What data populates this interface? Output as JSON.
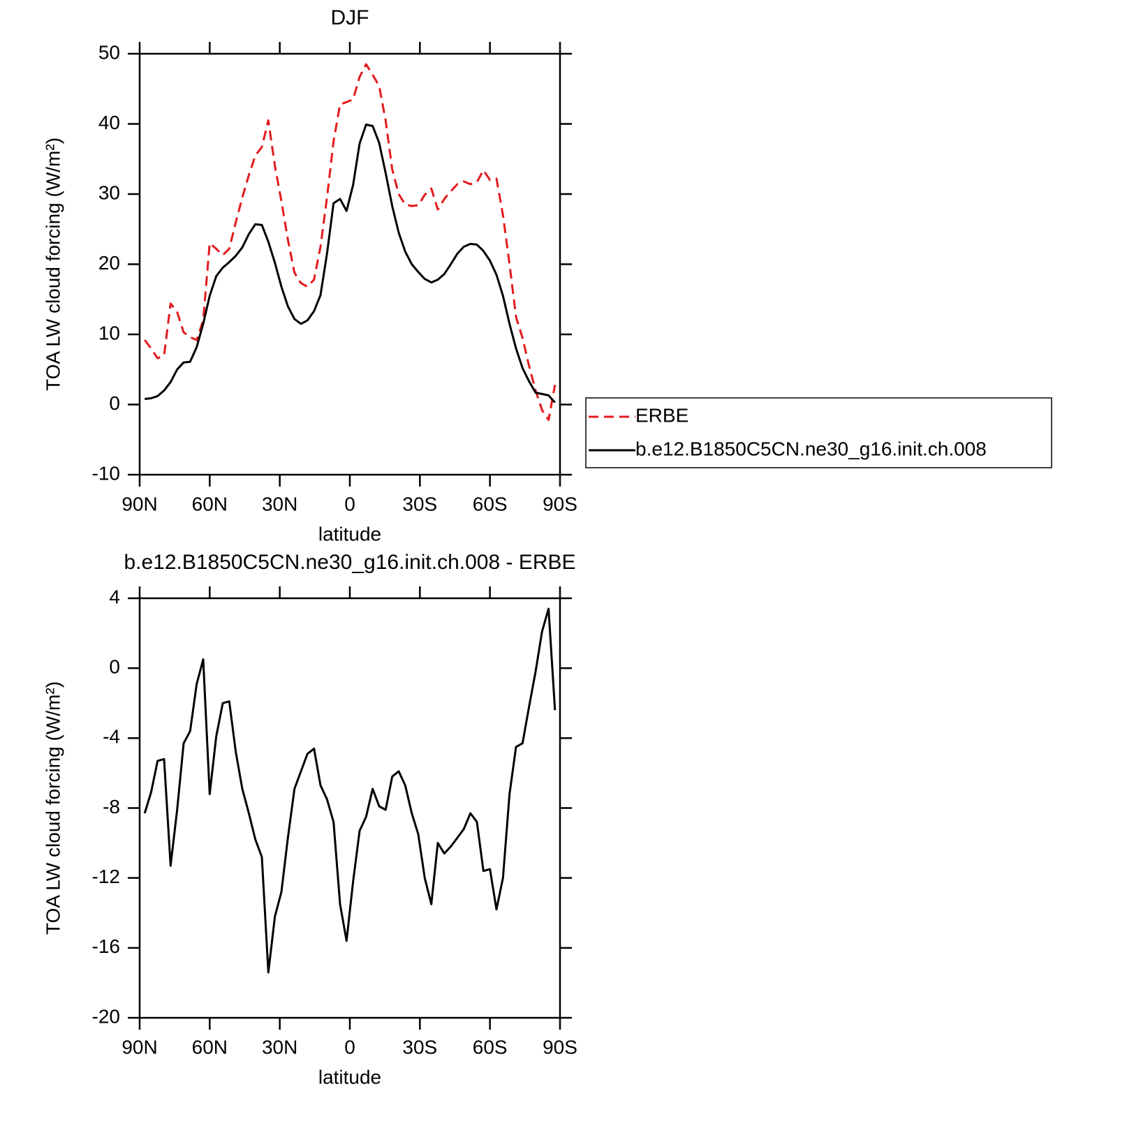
{
  "chart_data": [
    {
      "type": "line",
      "title": "DJF",
      "xlabel": "latitude",
      "ylabel": "TOA LW cloud forcing (W/m²)",
      "x": [
        87.86,
        85.1,
        82.31,
        79.53,
        76.74,
        73.95,
        71.16,
        68.37,
        65.58,
        62.79,
        60.0,
        57.21,
        54.42,
        51.63,
        48.84,
        46.04,
        43.25,
        40.46,
        37.67,
        34.88,
        32.09,
        29.3,
        26.51,
        23.72,
        20.93,
        18.14,
        15.35,
        12.56,
        9.77,
        6.98,
        4.19,
        1.4,
        -1.4,
        -4.19,
        -6.98,
        -9.77,
        -12.56,
        -15.35,
        -18.14,
        -20.93,
        -23.72,
        -26.51,
        -29.3,
        -32.09,
        -34.88,
        -37.67,
        -40.46,
        -43.25,
        -46.04,
        -48.84,
        -51.63,
        -54.42,
        -57.21,
        -60.0,
        -62.79,
        -65.58,
        -68.37,
        -71.16,
        -73.95,
        -76.74,
        -79.53,
        -82.31,
        -85.1,
        -87.86
      ],
      "xlim": [
        90,
        -90
      ],
      "xticks": [
        {
          "value": 90,
          "label": "90N"
        },
        {
          "value": 60,
          "label": "60N"
        },
        {
          "value": 30,
          "label": "30N"
        },
        0,
        {
          "value": -30,
          "label": "30S"
        },
        {
          "value": -60,
          "label": "60S"
        },
        {
          "value": -90,
          "label": "90S"
        }
      ],
      "ylim": [
        -10,
        50
      ],
      "yticks": [
        -10,
        0,
        10,
        20,
        30,
        40,
        50
      ],
      "legend": "right",
      "series": [
        {
          "name": "ERBE",
          "color": "#e31a1c",
          "linestyle": "dashed",
          "values": [
            9.2,
            8,
            6.6,
            7,
            14.4,
            13.2,
            10.3,
            9.6,
            9.2,
            12,
            23,
            22.2,
            21.3,
            22.2,
            26,
            29.5,
            32.7,
            35.5,
            36.7,
            40.5,
            34,
            29,
            23.5,
            18.8,
            17.3,
            16.8,
            17.8,
            22.5,
            29.5,
            37.5,
            42.8,
            43.1,
            43.5,
            46.7,
            48.5,
            47,
            45.4,
            40.5,
            33.5,
            30,
            28.5,
            28.3,
            28.4,
            29.9,
            30.8,
            27.8,
            29.3,
            30.4,
            31.4,
            31.8,
            31.4,
            31.7,
            33.4,
            32,
            32.2,
            27,
            20,
            12.5,
            9.5,
            5.5,
            2,
            -0.8,
            -2.2,
            2.8
          ]
        },
        {
          "name": "b.e12.B1850C5CN.ne30_g16.init.ch.008",
          "color": "#000000",
          "linestyle": "solid",
          "values": [
            0.8,
            0.9,
            1.2,
            2,
            3.2,
            5,
            6,
            6.1,
            8.2,
            11.5,
            15.5,
            18.3,
            19.5,
            20.3,
            21.2,
            22.4,
            24.3,
            25.7,
            25.6,
            23.2,
            20.2,
            16.8,
            14,
            12.2,
            11.5,
            12,
            13.3,
            15.6,
            21.5,
            28.7,
            29.3,
            27.6,
            31.3,
            37.2,
            39.9,
            39.7,
            37.3,
            33,
            28.3,
            24.5,
            21.8,
            20,
            18.9,
            17.9,
            17.4,
            17.8,
            18.6,
            20,
            21.5,
            22.5,
            22.9,
            22.8,
            21.9,
            20.5,
            18.5,
            15.5,
            11.5,
            8,
            5.2,
            3.3,
            1.7,
            1.5,
            1.3,
            0.3
          ]
        }
      ]
    },
    {
      "type": "line",
      "title": "b.e12.B1850C5CN.ne30_g16.init.ch.008 - ERBE",
      "xlabel": "latitude",
      "ylabel": "TOA LW cloud forcing (W/m²)",
      "x": [
        87.86,
        85.1,
        82.31,
        79.53,
        76.74,
        73.95,
        71.16,
        68.37,
        65.58,
        62.79,
        60.0,
        57.21,
        54.42,
        51.63,
        48.84,
        46.04,
        43.25,
        40.46,
        37.67,
        34.88,
        32.09,
        29.3,
        26.51,
        23.72,
        20.93,
        18.14,
        15.35,
        12.56,
        9.77,
        6.98,
        4.19,
        1.4,
        -1.4,
        -4.19,
        -6.98,
        -9.77,
        -12.56,
        -15.35,
        -18.14,
        -20.93,
        -23.72,
        -26.51,
        -29.3,
        -32.09,
        -34.88,
        -37.67,
        -40.46,
        -43.25,
        -46.04,
        -48.84,
        -51.63,
        -54.42,
        -57.21,
        -60.0,
        -62.79,
        -65.58,
        -68.37,
        -71.16,
        -73.95,
        -76.74,
        -79.53,
        -82.31,
        -85.1,
        -87.86
      ],
      "xlim": [
        90,
        -90
      ],
      "xticks": [
        {
          "value": 90,
          "label": "90N"
        },
        {
          "value": 60,
          "label": "60N"
        },
        {
          "value": 30,
          "label": "30N"
        },
        0,
        {
          "value": -30,
          "label": "30S"
        },
        {
          "value": -60,
          "label": "60S"
        },
        {
          "value": -90,
          "label": "90S"
        }
      ],
      "ylim": [
        -20,
        4
      ],
      "yticks": [
        -20,
        -16,
        -12,
        -8,
        -4,
        0,
        4
      ],
      "series": [
        {
          "color": "#000000",
          "linestyle": "solid",
          "values": [
            -8.3,
            -7.1,
            -5.3,
            -5.2,
            -11.3,
            -8.1,
            -4.3,
            -3.6,
            -0.9,
            0.5,
            -7.2,
            -3.9,
            -2,
            -1.9,
            -4.8,
            -6.9,
            -8.3,
            -9.8,
            -10.8,
            -17.4,
            -14.2,
            -12.8,
            -9.7,
            -6.9,
            -5.9,
            -4.9,
            -4.6,
            -6.7,
            -7.5,
            -8.8,
            -13.5,
            -15.6,
            -12.2,
            -9.3,
            -8.5,
            -6.9,
            -7.9,
            -8.1,
            -6.2,
            -5.9,
            -6.7,
            -8.3,
            -9.5,
            -12,
            -13.5,
            -10,
            -10.6,
            -10.2,
            -9.7,
            -9.2,
            -8.3,
            -8.8,
            -11.6,
            -11.5,
            -13.8,
            -12,
            -7.2,
            -4.5,
            -4.3,
            -2.2,
            -0.2,
            2.1,
            3.4,
            -2.4
          ]
        }
      ]
    }
  ]
}
